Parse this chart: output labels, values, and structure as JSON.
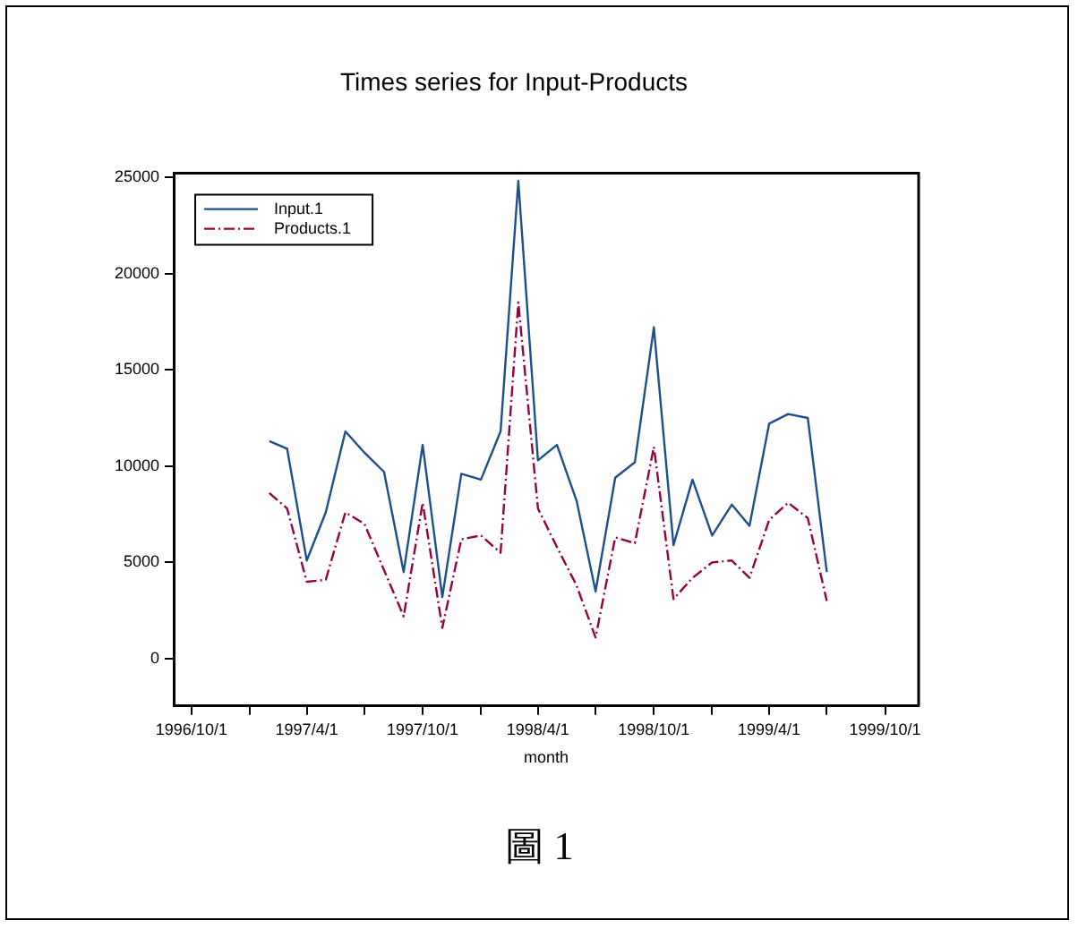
{
  "chart_data": {
    "type": "line",
    "title": "Times series for Input-Products",
    "xlabel": "month",
    "annotations": [
      "圖 1"
    ],
    "x": [
      "1997-02-01",
      "1997-03-01",
      "1997-04-01",
      "1997-05-01",
      "1997-06-01",
      "1997-07-01",
      "1997-08-01",
      "1997-09-01",
      "1997-10-01",
      "1997-11-01",
      "1997-12-01",
      "1998-01-01",
      "1998-02-01",
      "1998-03-01",
      "1998-04-01",
      "1998-05-01",
      "1998-06-01",
      "1998-07-01",
      "1998-08-01",
      "1998-09-01",
      "1998-10-01",
      "1998-11-01",
      "1998-12-01",
      "1999-01-01",
      "1999-02-01",
      "1999-03-01",
      "1999-04-01",
      "1999-05-01",
      "1999-06-01",
      "1999-07-01"
    ],
    "series": [
      {
        "name": "Input.1",
        "color": "#1f4e8c",
        "line_style": "solid",
        "values": [
          11300,
          10900,
          5100,
          7600,
          11800,
          10700,
          9700,
          4500,
          11100,
          3200,
          9600,
          9300,
          11800,
          24800,
          10300,
          11100,
          8200,
          3500,
          9400,
          10200,
          17200,
          5900,
          9300,
          6400,
          8000,
          6900,
          12200,
          12700,
          12500,
          4500
        ]
      },
      {
        "name": "Products.1",
        "color": "#990044",
        "line_style": "dashed",
        "values": [
          8600,
          7800,
          4000,
          4100,
          7600,
          7000,
          4600,
          2200,
          8100,
          1600,
          6200,
          6400,
          5500,
          18500,
          7800,
          5800,
          3800,
          1100,
          6300,
          6000,
          11000,
          3100,
          4200,
          5000,
          5100,
          4200,
          7200,
          8100,
          7300,
          3000
        ]
      }
    ],
    "xlim": [
      "1996-09-03",
      "1999-11-23"
    ],
    "xticks": [
      {
        "value": "1996-10-01",
        "label": "1996/10/1"
      },
      {
        "value": "1997-01-01",
        "label": null
      },
      {
        "value": "1997-04-01",
        "label": "1997/4/1"
      },
      {
        "value": "1997-07-01",
        "label": null
      },
      {
        "value": "1997-10-01",
        "label": "1997/10/1"
      },
      {
        "value": "1998-01-01",
        "label": null
      },
      {
        "value": "1998-04-01",
        "label": "1998/4/1"
      },
      {
        "value": "1998-07-01",
        "label": null
      },
      {
        "value": "1998-10-01",
        "label": "1998/10/1"
      },
      {
        "value": "1999-01-01",
        "label": null
      },
      {
        "value": "1999-04-01",
        "label": "1999/4/1"
      },
      {
        "value": "1999-07-01",
        "label": null
      },
      {
        "value": "1999-10-01",
        "label": "1999/10/1"
      }
    ],
    "ylim": [
      -2450,
      25200
    ],
    "yticks": [
      0,
      5000,
      10000,
      15000,
      20000,
      25000
    ],
    "legend": "top left",
    "grid": false,
    "marker": "none"
  }
}
